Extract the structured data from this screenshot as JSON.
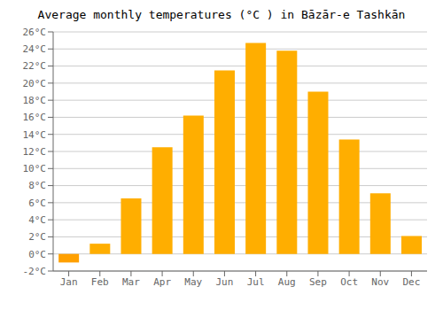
{
  "chart_data": {
    "type": "bar",
    "title": "Average monthly temperatures (°C ) in Bāzār-e Tashkān",
    "categories": [
      "Jan",
      "Feb",
      "Mar",
      "Apr",
      "May",
      "Jun",
      "Jul",
      "Aug",
      "Sep",
      "Oct",
      "Nov",
      "Dec"
    ],
    "values": [
      -1.0,
      1.2,
      6.5,
      12.5,
      16.2,
      21.5,
      24.7,
      23.8,
      19.0,
      13.4,
      7.1,
      2.1
    ],
    "colors": [
      "#FFA000",
      "#FFAE00",
      "#FFAE00",
      "#FFAE00",
      "#FFAE00",
      "#FFAE00",
      "#FFAE00",
      "#FFAE00",
      "#FFAE00",
      "#FFAE00",
      "#FFAE00",
      "#FFAE00"
    ],
    "ylim": [
      -2,
      26
    ],
    "yticks": [
      {
        "value": -2,
        "label": "-2°C"
      },
      {
        "value": 0,
        "label": "0°C"
      },
      {
        "value": 2,
        "label": "2°C"
      },
      {
        "value": 4,
        "label": "4°C"
      },
      {
        "value": 6,
        "label": "6°C"
      },
      {
        "value": 8,
        "label": "8°C"
      },
      {
        "value": 10,
        "label": "10°C"
      },
      {
        "value": 12,
        "label": "12°C"
      },
      {
        "value": 14,
        "label": "14°C"
      },
      {
        "value": 16,
        "label": "16°C"
      },
      {
        "value": 18,
        "label": "18°C"
      },
      {
        "value": 20,
        "label": "20°C"
      },
      {
        "value": 22,
        "label": "22°C"
      },
      {
        "value": 24,
        "label": "24°C"
      },
      {
        "value": 26,
        "label": "26°C"
      }
    ],
    "grid": true
  }
}
